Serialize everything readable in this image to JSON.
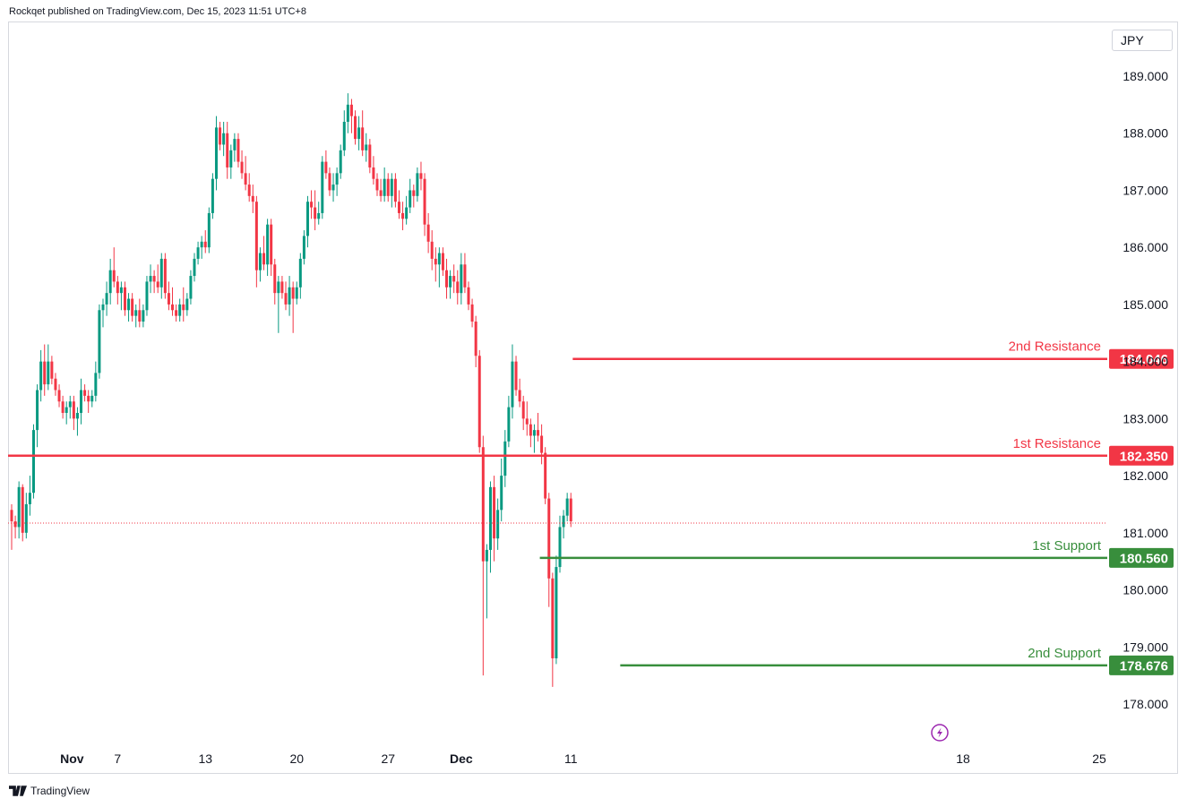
{
  "header": {
    "published": "Rockqet published on TradingView.com, Dec 15, 2023 11:51 UTC+8"
  },
  "footer": {
    "brand": "TradingView"
  },
  "currency": "JPY",
  "colors": {
    "up": "#089981",
    "down": "#f23645",
    "resistance": "#f23645",
    "support": "#388e3c",
    "grid_text": "#131722"
  },
  "chart_data": {
    "type": "candlestick",
    "title": "",
    "ylim": [
      177.3,
      189.65
    ],
    "y_ticks": [
      "189.000",
      "188.000",
      "187.000",
      "186.000",
      "185.000",
      "184.000",
      "183.000",
      "182.000",
      "181.000",
      "180.000",
      "179.000",
      "178.000"
    ],
    "x_ticks": [
      {
        "label": "Nov",
        "bar": 4,
        "bold": true
      },
      {
        "label": "7",
        "bar": 29
      },
      {
        "label": "13",
        "bar": 53
      },
      {
        "label": "20",
        "bar": 78
      },
      {
        "label": "27",
        "bar": 103
      },
      {
        "label": "Dec",
        "bar": 123,
        "bold": true
      },
      {
        "label": "11",
        "bar": 153
      },
      {
        "label": "18",
        "bar": 178
      },
      {
        "label": "25",
        "bar": 203
      }
    ],
    "current_price": 181.17,
    "levels": [
      {
        "name": "2nd Resistance",
        "value": "184.046",
        "price": 184.046,
        "kind": "resistance",
        "start_bar": 154
      },
      {
        "name": "1st Resistance",
        "value": "182.350",
        "price": 182.35,
        "kind": "resistance",
        "start_bar": 0
      },
      {
        "name": "1st Support",
        "value": "180.560",
        "price": 180.56,
        "kind": "support",
        "start_bar": 145
      },
      {
        "name": "2nd Support",
        "value": "178.676",
        "price": 178.676,
        "kind": "support",
        "start_bar": 167
      }
    ],
    "ohlc": [
      [
        181.4,
        181.5,
        180.7,
        181.2
      ],
      [
        181.2,
        181.3,
        180.9,
        181.1
      ],
      [
        181.1,
        181.9,
        180.9,
        181.8
      ],
      [
        181.8,
        181.85,
        180.85,
        181.0
      ],
      [
        181.0,
        181.7,
        180.9,
        181.5
      ],
      [
        181.5,
        182.0,
        181.3,
        181.7
      ],
      [
        181.7,
        182.9,
        181.6,
        182.8
      ],
      [
        182.8,
        183.6,
        182.5,
        183.5
      ],
      [
        183.5,
        184.2,
        183.3,
        184.0
      ],
      [
        184.0,
        184.3,
        183.4,
        183.6
      ],
      [
        183.6,
        184.3,
        183.5,
        184.0
      ],
      [
        184.0,
        184.1,
        183.6,
        183.7
      ],
      [
        183.7,
        183.8,
        183.4,
        183.5
      ],
      [
        183.5,
        183.6,
        183.2,
        183.3
      ],
      [
        183.3,
        183.4,
        183.0,
        183.1
      ],
      [
        183.1,
        183.3,
        182.9,
        183.2
      ],
      [
        183.2,
        183.4,
        183.0,
        183.3
      ],
      [
        183.3,
        183.4,
        182.8,
        183.0
      ],
      [
        183.0,
        183.2,
        182.7,
        183.1
      ],
      [
        183.1,
        183.7,
        182.9,
        183.5
      ],
      [
        183.5,
        183.6,
        183.3,
        183.4
      ],
      [
        183.4,
        183.5,
        183.1,
        183.3
      ],
      [
        183.3,
        183.5,
        183.2,
        183.4
      ],
      [
        183.4,
        184.0,
        183.3,
        183.8
      ],
      [
        183.8,
        185.0,
        183.7,
        184.9
      ],
      [
        184.9,
        185.1,
        184.6,
        185.0
      ],
      [
        185.0,
        185.4,
        184.8,
        185.2
      ],
      [
        185.2,
        185.8,
        185.0,
        185.6
      ],
      [
        185.6,
        186.0,
        185.3,
        185.4
      ],
      [
        185.4,
        185.5,
        185.0,
        185.2
      ],
      [
        185.2,
        185.4,
        184.9,
        185.3
      ],
      [
        185.3,
        185.4,
        184.8,
        184.9
      ],
      [
        184.9,
        185.2,
        184.7,
        185.1
      ],
      [
        185.1,
        185.2,
        184.7,
        184.8
      ],
      [
        184.8,
        185.0,
        184.6,
        184.9
      ],
      [
        184.9,
        185.1,
        184.6,
        184.7
      ],
      [
        184.7,
        185.0,
        184.6,
        184.9
      ],
      [
        184.9,
        185.5,
        184.8,
        185.4
      ],
      [
        185.4,
        185.7,
        185.2,
        185.5
      ],
      [
        185.5,
        185.6,
        185.2,
        185.4
      ],
      [
        185.4,
        185.7,
        185.2,
        185.3
      ],
      [
        185.3,
        185.9,
        185.1,
        185.8
      ],
      [
        185.8,
        185.9,
        185.1,
        185.2
      ],
      [
        185.2,
        185.4,
        184.9,
        185.0
      ],
      [
        185.0,
        185.3,
        184.8,
        184.9
      ],
      [
        184.9,
        185.0,
        184.7,
        184.8
      ],
      [
        184.8,
        185.1,
        184.7,
        185.0
      ],
      [
        185.0,
        185.3,
        184.7,
        184.9
      ],
      [
        184.9,
        185.2,
        184.8,
        185.1
      ],
      [
        185.1,
        185.6,
        185.0,
        185.5
      ],
      [
        185.5,
        185.9,
        185.4,
        185.8
      ],
      [
        185.8,
        186.1,
        185.7,
        186.0
      ],
      [
        186.0,
        186.2,
        185.8,
        186.1
      ],
      [
        186.1,
        186.3,
        185.9,
        186.0
      ],
      [
        186.0,
        186.7,
        185.9,
        186.6
      ],
      [
        186.6,
        187.3,
        186.5,
        187.2
      ],
      [
        187.2,
        188.3,
        187.0,
        188.1
      ],
      [
        188.1,
        188.2,
        187.7,
        187.8
      ],
      [
        187.8,
        188.2,
        187.6,
        188.0
      ],
      [
        188.0,
        188.2,
        187.2,
        187.4
      ],
      [
        187.4,
        187.8,
        187.2,
        187.7
      ],
      [
        187.7,
        188.0,
        187.5,
        187.9
      ],
      [
        187.9,
        188.0,
        187.4,
        187.5
      ],
      [
        187.5,
        187.7,
        187.2,
        187.3
      ],
      [
        187.3,
        187.6,
        187.0,
        187.1
      ],
      [
        187.1,
        187.3,
        186.8,
        186.9
      ],
      [
        186.9,
        187.1,
        186.6,
        186.8
      ],
      [
        186.8,
        186.9,
        185.3,
        185.6
      ],
      [
        185.6,
        186.0,
        185.4,
        185.9
      ],
      [
        185.9,
        186.2,
        185.6,
        185.7
      ],
      [
        185.7,
        186.5,
        185.5,
        186.4
      ],
      [
        186.4,
        186.5,
        185.5,
        185.7
      ],
      [
        185.7,
        185.8,
        185.0,
        185.2
      ],
      [
        185.2,
        185.5,
        184.5,
        185.4
      ],
      [
        185.4,
        185.5,
        185.1,
        185.2
      ],
      [
        185.2,
        185.4,
        184.9,
        185.0
      ],
      [
        185.0,
        185.5,
        184.8,
        185.3
      ],
      [
        185.3,
        185.4,
        184.5,
        185.1
      ],
      [
        185.1,
        185.4,
        185.0,
        185.3
      ],
      [
        185.3,
        185.9,
        185.1,
        185.8
      ],
      [
        185.8,
        186.3,
        185.7,
        186.2
      ],
      [
        186.2,
        186.9,
        186.0,
        186.8
      ],
      [
        186.8,
        187.0,
        186.5,
        186.7
      ],
      [
        186.7,
        187.0,
        186.3,
        186.5
      ],
      [
        186.5,
        186.8,
        186.4,
        186.6
      ],
      [
        186.6,
        187.6,
        186.5,
        187.5
      ],
      [
        187.5,
        187.7,
        187.2,
        187.3
      ],
      [
        187.3,
        187.4,
        186.9,
        187.0
      ],
      [
        187.0,
        187.3,
        186.8,
        187.1
      ],
      [
        187.1,
        187.4,
        186.9,
        187.3
      ],
      [
        187.3,
        187.8,
        187.2,
        187.7
      ],
      [
        187.7,
        188.4,
        187.6,
        188.2
      ],
      [
        188.2,
        188.7,
        188.0,
        188.5
      ],
      [
        188.5,
        188.6,
        188.0,
        188.3
      ],
      [
        188.3,
        188.4,
        187.8,
        187.9
      ],
      [
        187.9,
        188.3,
        187.7,
        188.1
      ],
      [
        188.1,
        188.4,
        187.6,
        187.7
      ],
      [
        187.7,
        188.0,
        187.5,
        187.8
      ],
      [
        187.8,
        187.9,
        187.3,
        187.4
      ],
      [
        187.4,
        187.6,
        187.1,
        187.2
      ],
      [
        187.2,
        187.3,
        186.9,
        187.0
      ],
      [
        187.0,
        187.2,
        186.8,
        186.9
      ],
      [
        186.9,
        187.4,
        186.8,
        187.2
      ],
      [
        187.2,
        187.3,
        186.8,
        186.9
      ],
      [
        186.9,
        187.3,
        186.7,
        187.2
      ],
      [
        187.2,
        187.3,
        186.7,
        186.8
      ],
      [
        186.8,
        187.0,
        186.5,
        186.6
      ],
      [
        186.6,
        186.8,
        186.3,
        186.5
      ],
      [
        186.5,
        186.9,
        186.4,
        186.7
      ],
      [
        186.7,
        187.2,
        186.6,
        187.0
      ],
      [
        187.0,
        187.1,
        186.7,
        186.9
      ],
      [
        186.9,
        187.4,
        186.8,
        187.3
      ],
      [
        187.3,
        187.5,
        187.0,
        187.2
      ],
      [
        187.2,
        187.3,
        186.2,
        186.4
      ],
      [
        186.4,
        186.6,
        185.9,
        186.1
      ],
      [
        186.1,
        186.3,
        185.6,
        185.8
      ],
      [
        185.8,
        186.0,
        185.4,
        185.7
      ],
      [
        185.7,
        186.0,
        185.3,
        185.9
      ],
      [
        185.9,
        186.0,
        185.5,
        185.6
      ],
      [
        185.6,
        185.8,
        185.1,
        185.3
      ],
      [
        185.3,
        185.6,
        185.1,
        185.5
      ],
      [
        185.5,
        185.7,
        185.2,
        185.4
      ],
      [
        185.4,
        185.6,
        185.0,
        185.2
      ],
      [
        185.2,
        185.9,
        185.0,
        185.7
      ],
      [
        185.7,
        185.9,
        185.2,
        185.3
      ],
      [
        185.3,
        185.4,
        184.9,
        185.0
      ],
      [
        185.0,
        185.1,
        184.6,
        184.7
      ],
      [
        184.7,
        184.8,
        183.9,
        184.1
      ],
      [
        184.1,
        184.2,
        182.4,
        182.5
      ],
      [
        182.5,
        182.7,
        178.5,
        180.5
      ],
      [
        180.5,
        180.8,
        179.5,
        180.7
      ],
      [
        180.7,
        181.9,
        180.3,
        181.8
      ],
      [
        181.8,
        182.0,
        180.5,
        180.9
      ],
      [
        180.9,
        181.6,
        180.7,
        181.4
      ],
      [
        181.4,
        182.3,
        181.2,
        182.0
      ],
      [
        182.0,
        182.8,
        181.8,
        182.6
      ],
      [
        182.6,
        183.4,
        182.5,
        183.2
      ],
      [
        183.2,
        184.3,
        183.0,
        184.0
      ],
      [
        184.0,
        184.1,
        183.4,
        183.5
      ],
      [
        183.5,
        183.7,
        183.2,
        183.3
      ],
      [
        183.3,
        183.4,
        182.8,
        183.0
      ],
      [
        183.0,
        183.3,
        182.7,
        182.9
      ],
      [
        182.9,
        183.0,
        182.5,
        182.7
      ],
      [
        182.7,
        182.9,
        182.4,
        182.8
      ],
      [
        182.8,
        183.1,
        182.6,
        182.7
      ],
      [
        182.7,
        182.9,
        182.2,
        182.4
      ],
      [
        182.4,
        182.5,
        181.5,
        181.6
      ],
      [
        181.6,
        181.7,
        179.7,
        180.2
      ],
      [
        180.2,
        180.3,
        178.3,
        178.8
      ],
      [
        178.8,
        180.6,
        178.7,
        180.4
      ],
      [
        180.4,
        181.3,
        180.3,
        181.1
      ],
      [
        181.1,
        181.4,
        180.9,
        181.3
      ],
      [
        181.3,
        181.7,
        181.2,
        181.6
      ],
      [
        181.6,
        181.7,
        181.1,
        181.2
      ]
    ],
    "bar_index_map": "bars 0-127 map to x_start 13 step 4.12 approx; later bars widened",
    "xlabel": "",
    "ylabel": ""
  }
}
